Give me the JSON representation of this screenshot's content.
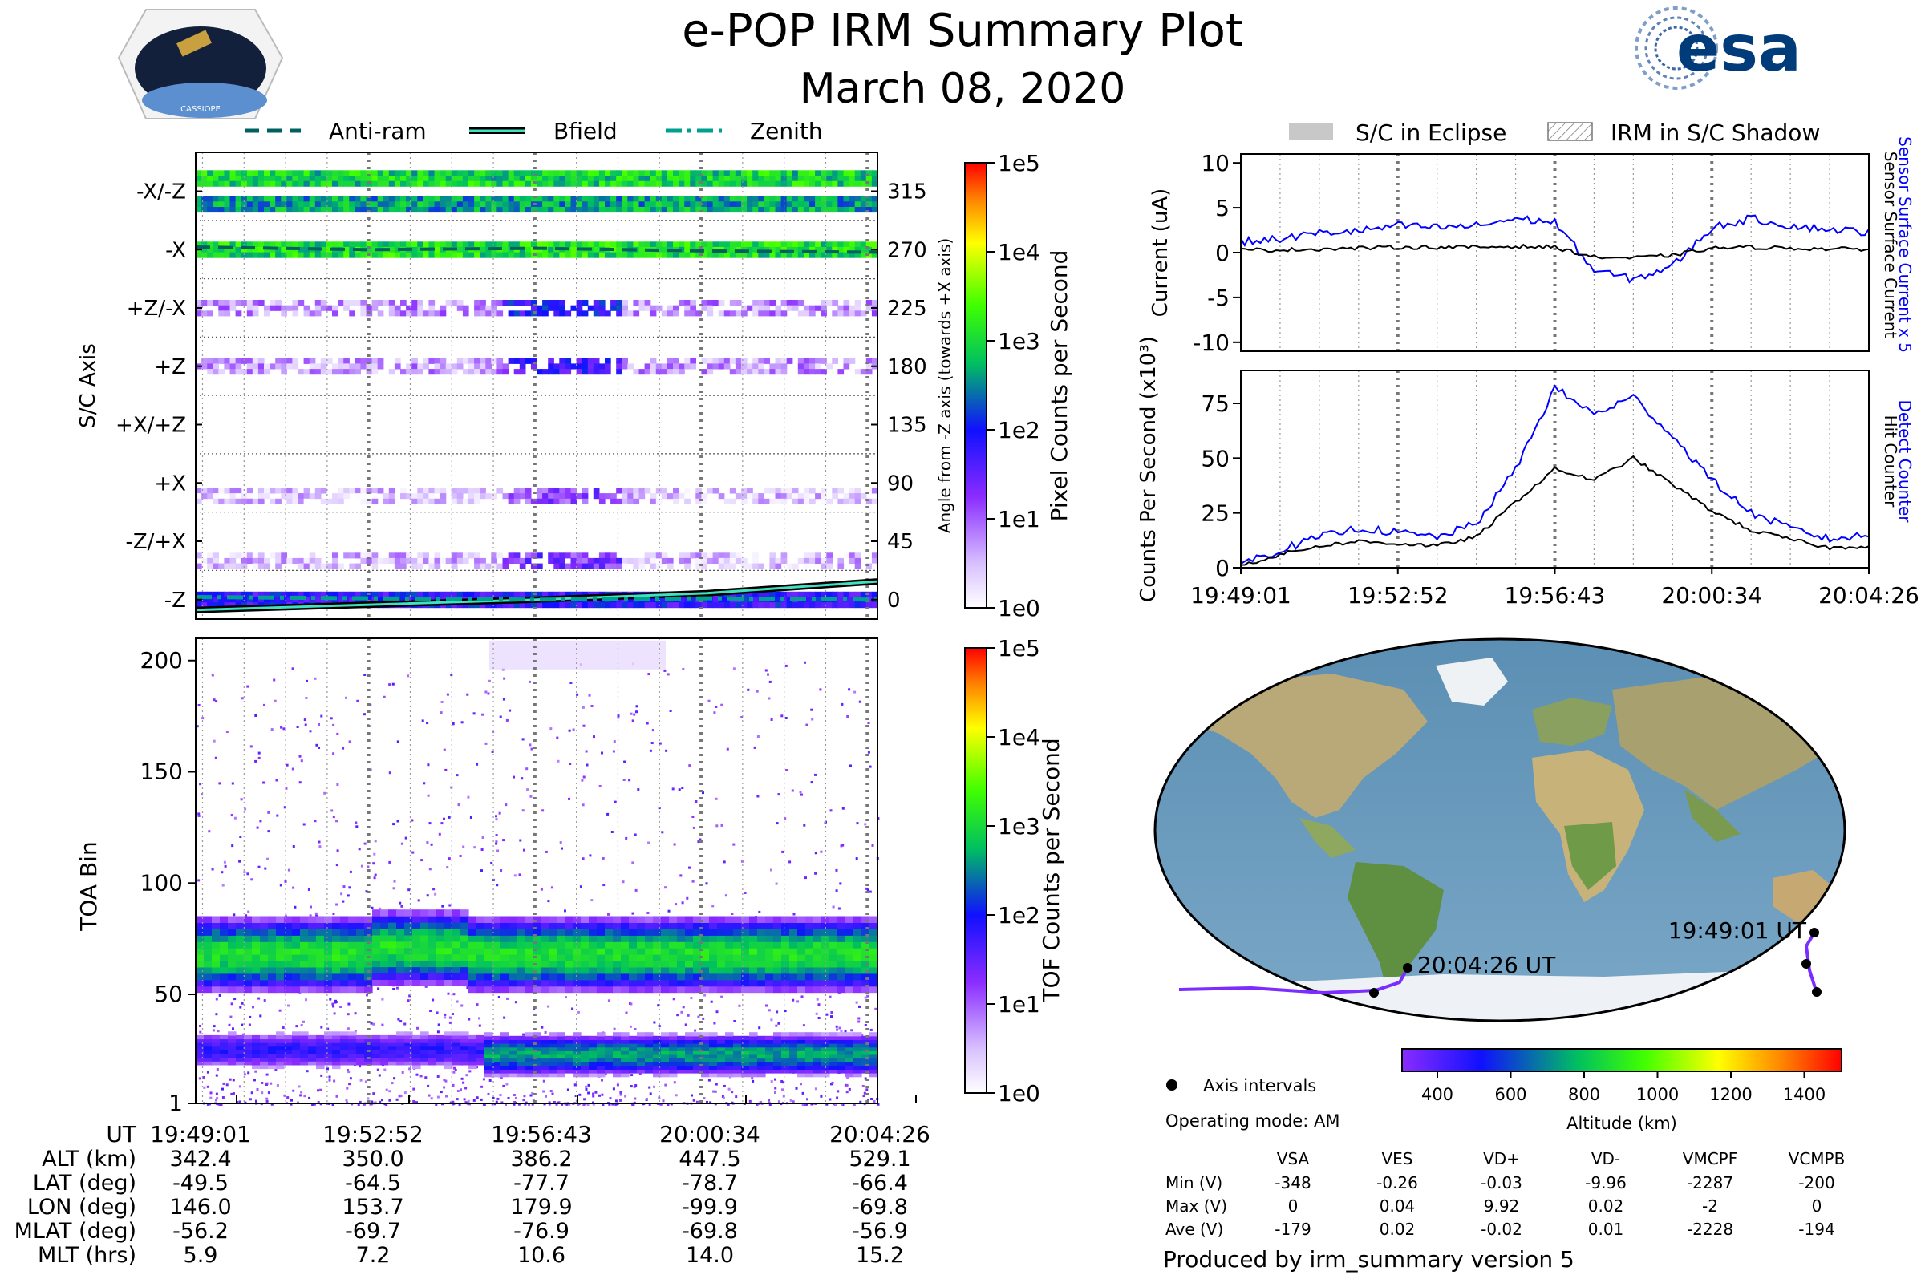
{
  "header": {
    "title": "e-POP IRM Summary Plot",
    "date": "March 08, 2020",
    "mission_badge_text": "CASSIOPE",
    "agency_logo_text": "esa"
  },
  "top_legend": [
    {
      "label": "Anti-ram",
      "style": "dashed"
    },
    {
      "label": "Bfield",
      "style": "solid"
    },
    {
      "label": "Zenith",
      "style": "dashdot"
    }
  ],
  "right_legend": [
    {
      "label": "S/C in Eclipse",
      "style": "gray-fill"
    },
    {
      "label": "IRM in S/C Shadow",
      "style": "hatched"
    }
  ],
  "colors": {
    "anti_ram": "#006060",
    "bfield_outer": "#000000",
    "bfield_inner": "#40e0c0",
    "zenith": "#00a090",
    "sensor_current": "#0000ff",
    "detect_counter": "#0000ff",
    "hit_counter": "#000000",
    "orbit_track": "#7b2cff"
  },
  "chart_data": [
    {
      "id": "pixel",
      "type": "heatmap",
      "ylabel_left": "S/C Axis",
      "ylabel_right": "Angle from -Z axis (towards +X axis)",
      "axis_labels": [
        "-X/-Z",
        "-X",
        "+Z/-X",
        "+Z",
        "+X/+Z",
        "+X",
        "-Z/+X",
        "-Z"
      ],
      "angle_ticks": [
        315,
        270,
        225,
        180,
        135,
        90,
        45,
        0
      ],
      "ylim": [
        -15,
        345
      ],
      "colorbar_label": "Pixel Counts per Second",
      "colorbar_ticks": [
        "1e5",
        "1e4",
        "1e3",
        "1e2",
        "1e1",
        "1e0"
      ],
      "bands": [
        {
          "angle": 325,
          "intensity": 2.9,
          "gap": false
        },
        {
          "angle": 305,
          "intensity": 2.6,
          "gap": false
        },
        {
          "angle": 270,
          "intensity": 3.0,
          "gap": false
        },
        {
          "angle": 225,
          "intensity": 1.3,
          "gap": true
        },
        {
          "angle": 180,
          "intensity": 1.2,
          "gap": true
        },
        {
          "angle": 80,
          "intensity": 0.8,
          "gap": true
        },
        {
          "angle": 30,
          "intensity": 0.9,
          "gap": true
        },
        {
          "angle": 0,
          "intensity": 1.8,
          "gap": false
        }
      ],
      "lines": [
        {
          "name": "Anti-ram",
          "values": [
            272,
            270,
            271,
            269,
            268
          ]
        },
        {
          "name": "Bfield",
          "values": [
            -8,
            -4,
            0,
            5,
            14
          ]
        },
        {
          "name": "Zenith",
          "values": [
            2,
            1,
            0,
            1,
            0
          ]
        }
      ]
    },
    {
      "id": "tof",
      "type": "heatmap",
      "ylabel": "TOA Bin",
      "yticks": [
        200,
        150,
        100,
        50,
        1
      ],
      "ylim": [
        1,
        210
      ],
      "colorbar_label": "TOF Counts per Second",
      "colorbar_ticks": [
        "1e5",
        "1e4",
        "1e3",
        "1e2",
        "1e1",
        "1e0"
      ],
      "bands": [
        {
          "center": 68,
          "width": 12,
          "peak": 3.0
        },
        {
          "center": 25,
          "width": 7,
          "peak": 2.6
        }
      ]
    },
    {
      "id": "current",
      "type": "line",
      "ylabel": "Current (uA)",
      "ylabel_right_blue": "Sensor Surface Current x 5",
      "ylabel_right_black": "Sensor Surface Current",
      "yticks": [
        10,
        5,
        0,
        -5,
        -10
      ],
      "ylim": [
        -11,
        11
      ],
      "series": [
        {
          "name": "Sensor Surface Current x 5",
          "values": [
            1.2,
            1.5,
            2.2,
            2.4,
            3.0,
            2.8,
            3.0,
            3.8,
            3.4,
            -2.0,
            -3.0,
            -1.5,
            2.8,
            3.8,
            3.0,
            2.6,
            2.3
          ]
        },
        {
          "name": "Sensor Surface Current",
          "values": [
            0.3,
            0.3,
            0.4,
            0.5,
            0.6,
            0.6,
            0.6,
            0.7,
            0.6,
            -0.5,
            -0.6,
            -0.3,
            0.5,
            0.6,
            0.5,
            0.4,
            0.4
          ]
        }
      ]
    },
    {
      "id": "counts",
      "type": "line",
      "ylabel": "Counts Per Second (x10³)",
      "ylabel_right_blue": "Detect Counter",
      "ylabel_right_black": "Hit Counter",
      "yticks": [
        75,
        50,
        25,
        0
      ],
      "ylim": [
        0,
        90
      ],
      "xticks": [
        "19:49:01",
        "19:52:52",
        "19:56:43",
        "20:00:34",
        "20:04:26"
      ],
      "series": [
        {
          "name": "Detect Counter",
          "values": [
            2,
            8,
            14,
            18,
            16,
            14,
            20,
            45,
            82,
            70,
            78,
            60,
            40,
            25,
            18,
            13,
            15
          ]
        },
        {
          "name": "Hit Counter",
          "values": [
            1,
            6,
            10,
            12,
            11,
            10,
            14,
            30,
            45,
            40,
            50,
            38,
            26,
            17,
            13,
            9,
            10
          ]
        }
      ]
    }
  ],
  "time_axis": {
    "label": "UT",
    "ticks": [
      "19:49:01",
      "19:52:52",
      "19:56:43",
      "20:00:34",
      "20:04:26"
    ]
  },
  "ephemeris": [
    {
      "label": "ALT (km)",
      "values": [
        "342.4",
        "350.0",
        "386.2",
        "447.5",
        "529.1"
      ]
    },
    {
      "label": "LAT (deg)",
      "values": [
        "-49.5",
        "-64.5",
        "-77.7",
        "-78.7",
        "-66.4"
      ]
    },
    {
      "label": "LON (deg)",
      "values": [
        "146.0",
        "153.7",
        "179.9",
        "-99.9",
        "-69.8"
      ]
    },
    {
      "label": "MLAT (deg)",
      "values": [
        "-56.2",
        "-69.7",
        "-76.9",
        "-69.8",
        "-56.9"
      ]
    },
    {
      "label": "MLT (hrs)",
      "values": [
        "5.9",
        "7.2",
        "10.6",
        "14.0",
        "15.2"
      ]
    }
  ],
  "map": {
    "start_label": "19:49:01 UT",
    "end_label": "20:04:26 UT",
    "altitude_colorbar_label": "Altitude (km)",
    "altitude_ticks": [
      "400",
      "600",
      "800",
      "1000",
      "1200",
      "1400"
    ],
    "legend_axis_intervals": "Axis intervals",
    "operating_mode": "Operating mode: AM"
  },
  "voltage_table": {
    "columns": [
      "VSA",
      "VES",
      "VD+",
      "VD-",
      "VMCPF",
      "VCMPB"
    ],
    "rows": [
      {
        "label": "Min (V)",
        "values": [
          "-348",
          "-0.26",
          "-0.03",
          "-9.96",
          "-2287",
          "-200"
        ]
      },
      {
        "label": "Max (V)",
        "values": [
          "0",
          "0.04",
          "9.92",
          "0.02",
          "-2",
          "0"
        ]
      },
      {
        "label": "Ave (V)",
        "values": [
          "-179",
          "0.02",
          "-0.02",
          "0.01",
          "-2228",
          "-194"
        ]
      }
    ]
  },
  "footer": "Produced by irm_summary version 5"
}
